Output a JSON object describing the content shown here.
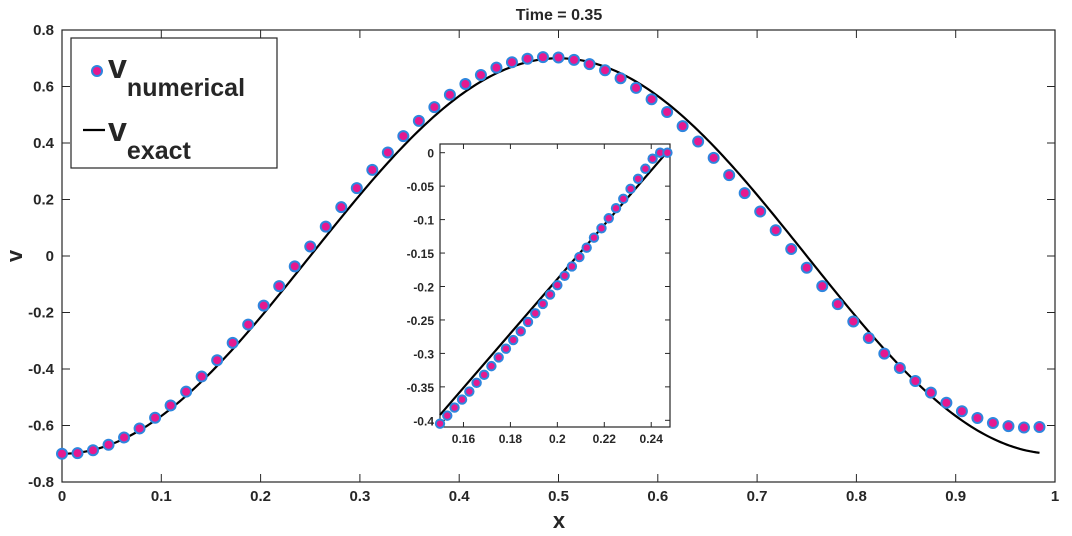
{
  "chart_data": [
    {
      "id": "main",
      "type": "line",
      "title": "Time = 0.35",
      "xlabel": "x",
      "ylabel": "v",
      "xlim": [
        0,
        1
      ],
      "ylim": [
        -0.8,
        0.8
      ],
      "xticks": [
        0,
        0.1,
        0.2,
        0.3,
        0.4,
        0.5,
        0.6,
        0.7,
        0.8,
        0.9,
        1
      ],
      "yticks": [
        -0.8,
        -0.6,
        -0.4,
        -0.2,
        0,
        0.2,
        0.4,
        0.6,
        0.8
      ],
      "xtick_labels": [
        "0",
        "0.1",
        "0.2",
        "0.3",
        "0.4",
        "0.5",
        "0.6",
        "0.7",
        "0.8",
        "0.9",
        "1"
      ],
      "ytick_labels": [
        "-0.8",
        "-0.6",
        "-0.4",
        "-0.2",
        "0",
        "0.2",
        "0.4",
        "0.6",
        "0.8"
      ],
      "grid": false,
      "legend_position": "top-left",
      "series": [
        {
          "name": "v_numerical",
          "label_main": "v",
          "label_sub": "numerical",
          "kind": "markers",
          "marker_face": "#E5198F",
          "marker_edge": "#2E86DE",
          "x": [
            0,
            0.015625,
            0.03125,
            0.046875,
            0.0625,
            0.078125,
            0.09375,
            0.109375,
            0.125,
            0.140625,
            0.15625,
            0.171875,
            0.1875,
            0.203125,
            0.21875,
            0.234375,
            0.25,
            0.265625,
            0.28125,
            0.296875,
            0.3125,
            0.328125,
            0.34375,
            0.359375,
            0.375,
            0.390625,
            0.40625,
            0.421875,
            0.4375,
            0.453125,
            0.46875,
            0.484375,
            0.5,
            0.515625,
            0.53125,
            0.546875,
            0.5625,
            0.578125,
            0.59375,
            0.609375,
            0.625,
            0.640625,
            0.65625,
            0.671875,
            0.6875,
            0.703125,
            0.71875,
            0.734375,
            0.75,
            0.765625,
            0.78125,
            0.796875,
            0.8125,
            0.828125,
            0.84375,
            0.859375,
            0.875,
            0.890625,
            0.90625,
            0.921875,
            0.9375,
            0.953125,
            0.96875,
            0.984375
          ],
          "y": [
            -0.7,
            -0.698,
            -0.6877,
            -0.6681,
            -0.6424,
            -0.6104,
            -0.5725,
            -0.529,
            -0.4803,
            -0.4267,
            -0.3689,
            -0.3074,
            -0.2427,
            -0.1755,
            -0.1066,
            -0.0366,
            0.0337,
            0.1038,
            0.1728,
            0.2401,
            0.3049,
            0.3665,
            0.4244,
            0.4782,
            0.5271,
            0.5708,
            0.6089,
            0.6409,
            0.6667,
            0.6859,
            0.6984,
            0.704,
            0.7026,
            0.6943,
            0.6792,
            0.6574,
            0.6293,
            0.595,
            0.555,
            0.5097,
            0.4596,
            0.4053,
            0.3473,
            0.2862,
            0.2227,
            0.1575,
            0.0913,
            0.0247,
            -0.0415,
            -0.1067,
            -0.1703,
            -0.2318,
            -0.2903,
            -0.3454,
            -0.3963,
            -0.4426,
            -0.4838,
            -0.5195,
            -0.5495,
            -0.5734,
            -0.591,
            -0.6023,
            -0.6071,
            -0.6054
          ]
        },
        {
          "name": "v_exact",
          "label_main": "v",
          "label_sub": "exact",
          "kind": "line",
          "color": "#000000",
          "formula": "-0.7*cos(2*pi*x)"
        }
      ]
    },
    {
      "id": "inset",
      "type": "line",
      "title": "",
      "xlabel": "",
      "ylabel": "",
      "xlim": [
        0.15,
        0.248
      ],
      "ylim": [
        -0.41,
        0.013
      ],
      "xticks": [
        0.16,
        0.18,
        0.2,
        0.22,
        0.24
      ],
      "yticks": [
        -0.4,
        -0.35,
        -0.3,
        -0.25,
        -0.2,
        -0.15,
        -0.1,
        -0.05,
        0
      ],
      "xtick_labels": [
        "0.16",
        "0.18",
        "0.2",
        "0.22",
        "0.24"
      ],
      "ytick_labels": [
        "-0.4",
        "-0.35",
        "-0.3",
        "-0.25",
        "-0.2",
        "-0.15",
        "-0.1",
        "-0.05",
        "0"
      ],
      "grid": false,
      "series": [
        {
          "name": "v_numerical",
          "kind": "markers",
          "marker_face": "#E5198F",
          "marker_edge": "#2E86DE",
          "x": [
            0.15,
            0.1531,
            0.1562,
            0.1594,
            0.1625,
            0.1656,
            0.1688,
            0.1719,
            0.175,
            0.1781,
            0.1812,
            0.1844,
            0.1875,
            0.1906,
            0.1938,
            0.1969,
            0.2,
            0.2031,
            0.2062,
            0.2094,
            0.2125,
            0.2156,
            0.2188,
            0.2219,
            0.225,
            0.2281,
            0.2312,
            0.2344,
            0.2375,
            0.2406,
            0.2438,
            0.2469
          ],
          "y": [
            -0.405,
            -0.393,
            -0.381,
            -0.369,
            -0.357,
            -0.344,
            -0.332,
            -0.319,
            -0.306,
            -0.293,
            -0.28,
            -0.267,
            -0.253,
            -0.24,
            -0.226,
            -0.212,
            -0.198,
            -0.184,
            -0.17,
            -0.156,
            -0.142,
            -0.127,
            -0.113,
            -0.098,
            -0.083,
            -0.069,
            -0.054,
            -0.039,
            -0.024,
            -0.009,
            0.0,
            0.0
          ]
        },
        {
          "name": "v_exact",
          "kind": "line",
          "color": "#000000",
          "x": [
            0.15,
            0.248
          ],
          "y": [
            -0.392,
            0.006
          ]
        }
      ]
    }
  ]
}
